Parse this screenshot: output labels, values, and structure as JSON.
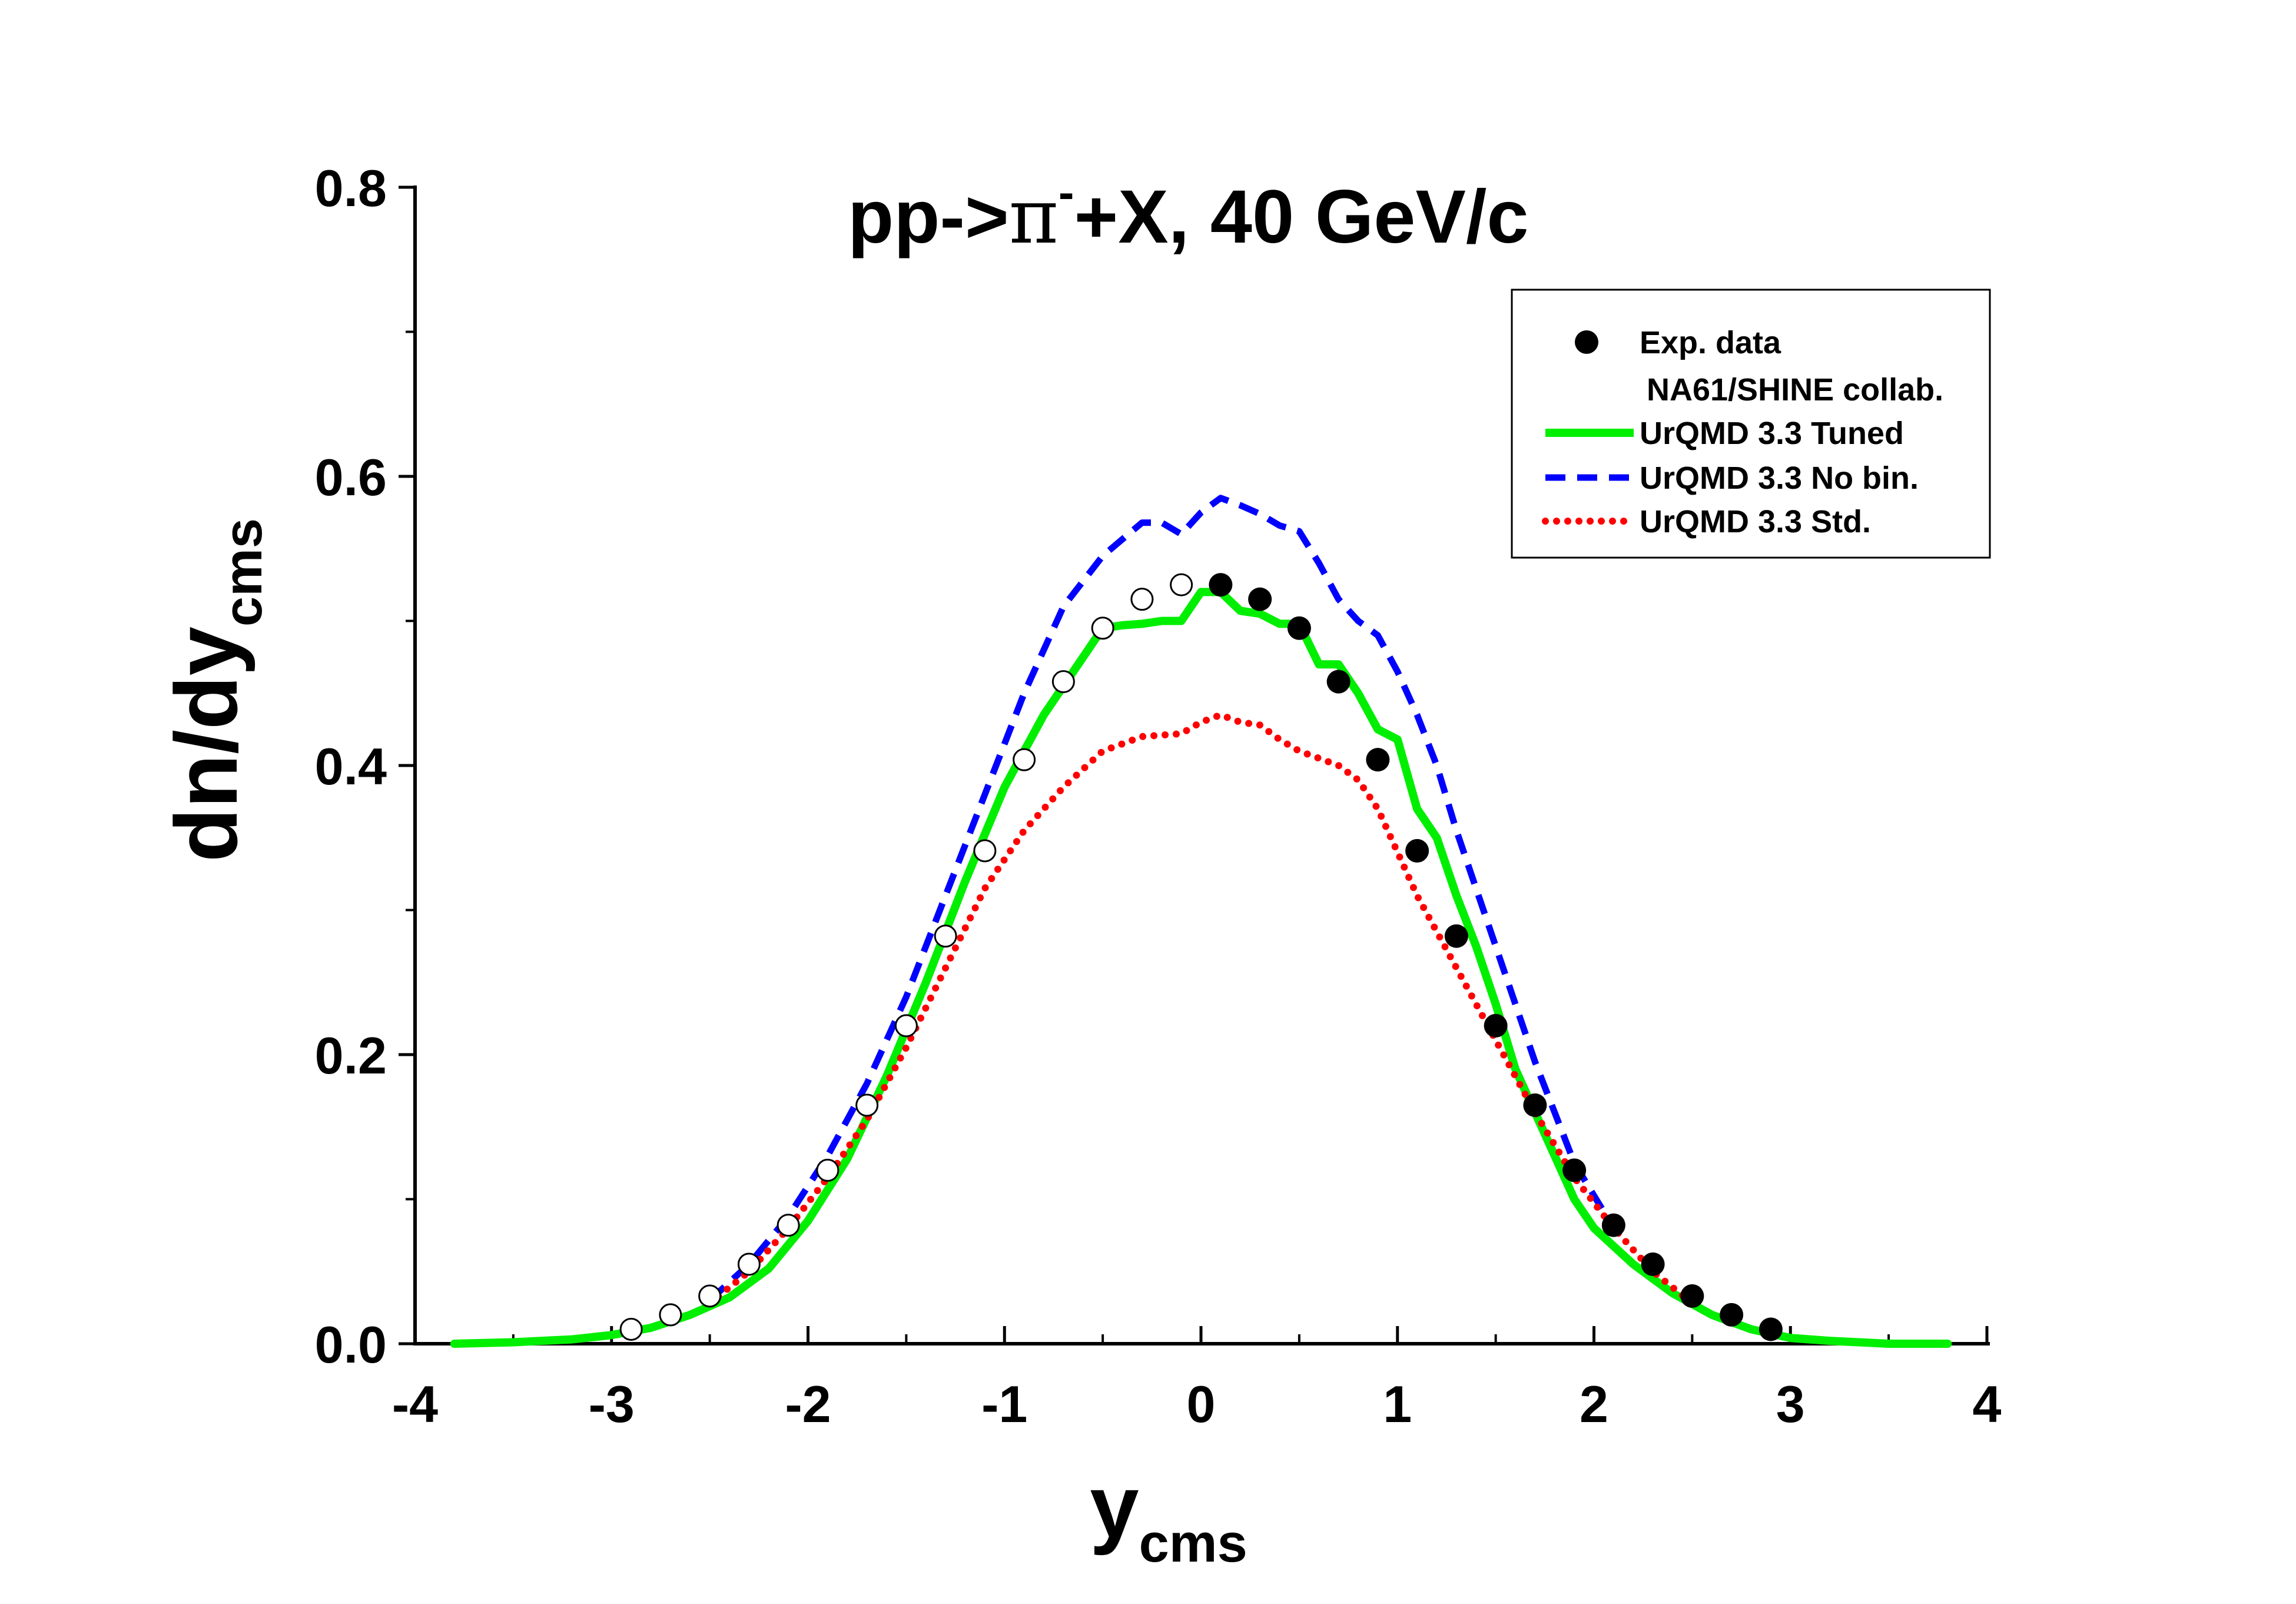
{
  "chart_data": {
    "type": "line",
    "title": {
      "prefix": "pp->",
      "pi": "π",
      "sup": "-",
      "suffix": "+X, 40 GeV/c"
    },
    "xlabel": {
      "main": "y",
      "sub": "cms"
    },
    "ylabel": {
      "main": "dn/dy",
      "sub": "cms"
    },
    "xlim": [
      -4,
      4
    ],
    "ylim": [
      0,
      0.8
    ],
    "xticks": [
      -4,
      -3,
      -2,
      -1,
      0,
      1,
      2,
      3,
      4
    ],
    "xtick_labels": [
      "-4",
      "-3",
      "-2",
      "-1",
      "0",
      "1",
      "2",
      "3",
      "4"
    ],
    "yticks": [
      0,
      0.2,
      0.4,
      0.6,
      0.8
    ],
    "ytick_labels": [
      "0.0",
      "0.2",
      "0.4",
      "0.6",
      "0.8"
    ],
    "legend": {
      "position": "top-right",
      "entries": [
        {
          "label": "Exp. data",
          "symbol": "filled-circle"
        },
        {
          "label": "NA61/SHINE collab.",
          "symbol": "none"
        },
        {
          "label": "UrQMD 3.3 Tuned",
          "symbol": "solid-line",
          "color": "#00ee00"
        },
        {
          "label": "UrQMD 3.3 No bin.",
          "symbol": "dashed-line",
          "color": "#0000ff"
        },
        {
          "label": "UrQMD 3.3 Std.",
          "symbol": "dotted-line",
          "color": "#ff0000"
        }
      ]
    },
    "points": {
      "name": "Exp. data",
      "measured": {
        "x": [
          0.1,
          0.3,
          0.5,
          0.7,
          0.9,
          1.1,
          1.3,
          1.5,
          1.7,
          1.9,
          2.1,
          2.3,
          2.5,
          2.7,
          2.9
        ],
        "y": [
          0.525,
          0.515,
          0.495,
          0.458,
          0.404,
          0.341,
          0.282,
          0.22,
          0.165,
          0.12,
          0.082,
          0.055,
          0.033,
          0.02,
          0.01
        ]
      },
      "reflected": {
        "x": [
          -0.1,
          -0.3,
          -0.5,
          -0.7,
          -0.9,
          -1.1,
          -1.3,
          -1.5,
          -1.7,
          -1.9,
          -2.1,
          -2.3,
          -2.5,
          -2.7,
          -2.9
        ],
        "y": [
          0.525,
          0.515,
          0.495,
          0.458,
          0.404,
          0.341,
          0.282,
          0.22,
          0.165,
          0.12,
          0.082,
          0.055,
          0.033,
          0.02,
          0.01
        ]
      }
    },
    "series": [
      {
        "name": "UrQMD 3.3 Tuned",
        "color": "#00ee00",
        "style": "solid",
        "x": [
          -3.8,
          -3.5,
          -3.2,
          -3.0,
          -2.8,
          -2.6,
          -2.4,
          -2.2,
          -2.0,
          -1.8,
          -1.6,
          -1.4,
          -1.2,
          -1.0,
          -0.9,
          -0.8,
          -0.7,
          -0.6,
          -0.5,
          -0.4,
          -0.3,
          -0.2,
          -0.1,
          0.0,
          0.1,
          0.2,
          0.3,
          0.4,
          0.5,
          0.6,
          0.7,
          0.8,
          0.9,
          1.0,
          1.1,
          1.2,
          1.3,
          1.4,
          1.5,
          1.6,
          1.7,
          1.8,
          1.9,
          2.0,
          2.2,
          2.4,
          2.6,
          2.8,
          3.0,
          3.2,
          3.5,
          3.8
        ],
        "y": [
          0.0,
          0.001,
          0.003,
          0.006,
          0.011,
          0.02,
          0.032,
          0.052,
          0.085,
          0.128,
          0.185,
          0.25,
          0.32,
          0.385,
          0.41,
          0.435,
          0.455,
          0.475,
          0.495,
          0.497,
          0.498,
          0.5,
          0.5,
          0.52,
          0.52,
          0.507,
          0.505,
          0.498,
          0.498,
          0.47,
          0.47,
          0.45,
          0.425,
          0.418,
          0.37,
          0.35,
          0.31,
          0.275,
          0.235,
          0.19,
          0.16,
          0.13,
          0.1,
          0.08,
          0.055,
          0.035,
          0.02,
          0.01,
          0.004,
          0.002,
          0.0,
          0.0
        ]
      },
      {
        "name": "UrQMD 3.3 No bin.",
        "color": "#0000ff",
        "style": "dashed",
        "x": [
          -2.5,
          -2.3,
          -2.1,
          -1.9,
          -1.7,
          -1.5,
          -1.3,
          -1.1,
          -0.9,
          -0.7,
          -0.5,
          -0.3,
          -0.2,
          -0.1,
          0.0,
          0.1,
          0.2,
          0.3,
          0.4,
          0.5,
          0.6,
          0.7,
          0.8,
          0.9,
          1.0,
          1.1,
          1.2,
          1.3,
          1.5,
          1.7,
          1.9,
          2.1
        ],
        "y": [
          0.03,
          0.055,
          0.088,
          0.13,
          0.18,
          0.24,
          0.31,
          0.38,
          0.45,
          0.51,
          0.545,
          0.568,
          0.568,
          0.56,
          0.575,
          0.585,
          0.58,
          0.574,
          0.566,
          0.562,
          0.54,
          0.515,
          0.5,
          0.49,
          0.465,
          0.435,
          0.4,
          0.355,
          0.275,
          0.195,
          0.125,
          0.08
        ]
      },
      {
        "name": "UrQMD 3.3 Std.",
        "color": "#ff0000",
        "style": "dotted",
        "x": [
          -2.5,
          -2.3,
          -2.1,
          -1.9,
          -1.7,
          -1.5,
          -1.3,
          -1.1,
          -0.9,
          -0.7,
          -0.5,
          -0.3,
          -0.1,
          0.0,
          0.1,
          0.2,
          0.3,
          0.4,
          0.5,
          0.6,
          0.7,
          0.8,
          0.9,
          1.0,
          1.1,
          1.2,
          1.3,
          1.5,
          1.7,
          1.9,
          2.1,
          2.3,
          2.5
        ],
        "y": [
          0.028,
          0.05,
          0.08,
          0.115,
          0.155,
          0.205,
          0.26,
          0.315,
          0.355,
          0.385,
          0.41,
          0.42,
          0.422,
          0.43,
          0.435,
          0.43,
          0.428,
          0.418,
          0.41,
          0.405,
          0.4,
          0.39,
          0.37,
          0.34,
          0.31,
          0.285,
          0.26,
          0.21,
          0.16,
          0.115,
          0.08,
          0.05,
          0.028
        ]
      }
    ]
  }
}
